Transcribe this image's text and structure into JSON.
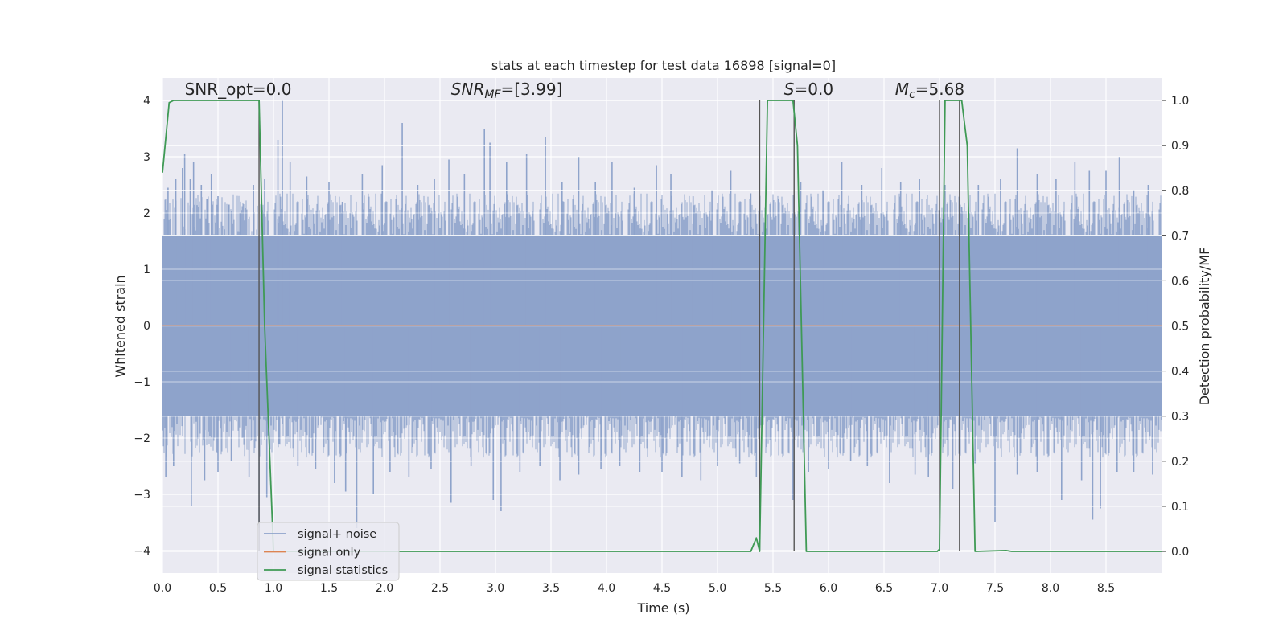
{
  "chart_data": {
    "type": "line",
    "title": "stats at each timestep for test data 16898 [signal=0]",
    "xlabel": "Time (s)",
    "ylabel_left": "Whitened strain",
    "ylabel_right": "Detection probability/MF",
    "xlim": [
      0.0,
      9.0
    ],
    "ylim_left": [
      -4.4,
      4.4
    ],
    "ylim_right": [
      -0.05,
      1.05
    ],
    "grid": true,
    "x_ticks": [
      "0.0",
      "0.5",
      "1.0",
      "1.5",
      "2.0",
      "2.5",
      "3.0",
      "3.5",
      "4.0",
      "4.5",
      "5.0",
      "5.5",
      "6.0",
      "6.5",
      "7.0",
      "7.5",
      "8.0",
      "8.5"
    ],
    "x_tick_values": [
      0.0,
      0.5,
      1.0,
      1.5,
      2.0,
      2.5,
      3.0,
      3.5,
      4.0,
      4.5,
      5.0,
      5.5,
      6.0,
      6.5,
      7.0,
      7.5,
      8.0,
      8.5
    ],
    "y_left_ticks": [
      "4",
      "3",
      "2",
      "1",
      "0",
      "−1",
      "−2",
      "−3",
      "−4"
    ],
    "y_left_tick_values": [
      4,
      3,
      2,
      1,
      0,
      -1,
      -2,
      -3,
      -4
    ],
    "y_right_ticks": [
      "1.0",
      "0.9",
      "0.8",
      "0.7",
      "0.6",
      "0.5",
      "0.4",
      "0.3",
      "0.2",
      "0.1",
      "0.0"
    ],
    "y_right_tick_values": [
      1.0,
      0.9,
      0.8,
      0.7,
      0.6,
      0.5,
      0.4,
      0.3,
      0.2,
      0.1,
      0.0
    ],
    "annotations": [
      {
        "text": "SNR_opt=0.0",
        "x": 0.2,
        "y": 4.1,
        "italic": false
      },
      {
        "text_parts": [
          [
            "SNR",
            "i"
          ],
          [
            "MF",
            "sub-i"
          ],
          [
            "=[3.99]",
            "n"
          ]
        ],
        "x": 2.6,
        "y": 4.1
      },
      {
        "text_parts": [
          [
            "S",
            "i"
          ],
          [
            "=0.0",
            "n"
          ]
        ],
        "x": 5.6,
        "y": 4.1
      },
      {
        "text_parts": [
          [
            "M",
            "i"
          ],
          [
            "c",
            "sub-i"
          ],
          [
            "=5.68",
            "n"
          ]
        ],
        "x": 6.6,
        "y": 4.1
      }
    ],
    "legend": {
      "placement": "lower-left",
      "entries": [
        {
          "label": "signal+ noise",
          "color": "#8ea3cb"
        },
        {
          "label": "signal only",
          "color": "#dd8452"
        },
        {
          "label": "signal statistics",
          "color": "#3f9a55"
        }
      ]
    },
    "vertical_lines_x": [
      0.87,
      5.38,
      5.69,
      7.0,
      7.18
    ],
    "vertical_lines_range": [
      -4.0,
      4.0
    ],
    "series": [
      {
        "name": "signal+ noise",
        "axis": "left",
        "color": "#8ea3cb",
        "render": "dense-noise",
        "core_band": [
          -1.6,
          1.6
        ],
        "x_range": [
          0.0,
          9.0
        ],
        "spikes": [
          {
            "x": 0.05,
            "y": 2.45
          },
          {
            "x": 0.12,
            "y": 2.6
          },
          {
            "x": 0.18,
            "y": 2.8
          },
          {
            "x": 0.2,
            "y": 3.05
          },
          {
            "x": 0.25,
            "y": 2.6
          },
          {
            "x": 0.28,
            "y": 2.9
          },
          {
            "x": 0.35,
            "y": 2.5
          },
          {
            "x": 0.4,
            "y": 2.25
          },
          {
            "x": 0.44,
            "y": 2.7
          },
          {
            "x": 0.5,
            "y": 2.3
          },
          {
            "x": 0.6,
            "y": 2.15
          },
          {
            "x": 0.7,
            "y": 2.0
          },
          {
            "x": 0.82,
            "y": 2.5
          },
          {
            "x": 0.92,
            "y": 2.6
          },
          {
            "x": 1.04,
            "y": 3.3
          },
          {
            "x": 1.08,
            "y": 4.0
          },
          {
            "x": 1.15,
            "y": 2.9
          },
          {
            "x": 1.3,
            "y": 2.65
          },
          {
            "x": 1.5,
            "y": 2.55
          },
          {
            "x": 1.62,
            "y": 2.2
          },
          {
            "x": 1.8,
            "y": 2.7
          },
          {
            "x": 1.98,
            "y": 2.85
          },
          {
            "x": 2.16,
            "y": 3.6
          },
          {
            "x": 2.3,
            "y": 2.5
          },
          {
            "x": 2.45,
            "y": 2.6
          },
          {
            "x": 2.58,
            "y": 2.95
          },
          {
            "x": 2.72,
            "y": 2.7
          },
          {
            "x": 2.9,
            "y": 3.5
          },
          {
            "x": 2.95,
            "y": 3.25
          },
          {
            "x": 3.1,
            "y": 2.9
          },
          {
            "x": 3.28,
            "y": 3.05
          },
          {
            "x": 3.45,
            "y": 3.35
          },
          {
            "x": 3.6,
            "y": 2.55
          },
          {
            "x": 3.75,
            "y": 3.0
          },
          {
            "x": 3.9,
            "y": 2.55
          },
          {
            "x": 4.05,
            "y": 2.9
          },
          {
            "x": 4.25,
            "y": 2.45
          },
          {
            "x": 4.45,
            "y": 2.85
          },
          {
            "x": 4.58,
            "y": 2.7
          },
          {
            "x": 4.78,
            "y": 2.3
          },
          {
            "x": 4.95,
            "y": 2.4
          },
          {
            "x": 5.12,
            "y": 2.75
          },
          {
            "x": 5.3,
            "y": 2.35
          },
          {
            "x": 5.55,
            "y": 2.25
          },
          {
            "x": 5.75,
            "y": 2.55
          },
          {
            "x": 5.95,
            "y": 2.4
          },
          {
            "x": 6.12,
            "y": 2.9
          },
          {
            "x": 6.3,
            "y": 2.5
          },
          {
            "x": 6.48,
            "y": 2.8
          },
          {
            "x": 6.65,
            "y": 2.55
          },
          {
            "x": 6.82,
            "y": 2.6
          },
          {
            "x": 7.05,
            "y": 2.5
          },
          {
            "x": 7.2,
            "y": 2.1
          },
          {
            "x": 7.35,
            "y": 2.5
          },
          {
            "x": 7.55,
            "y": 2.6
          },
          {
            "x": 7.7,
            "y": 3.15
          },
          {
            "x": 7.88,
            "y": 2.7
          },
          {
            "x": 8.05,
            "y": 2.6
          },
          {
            "x": 8.22,
            "y": 2.9
          },
          {
            "x": 8.35,
            "y": 2.75
          },
          {
            "x": 8.5,
            "y": 2.75
          },
          {
            "x": 8.62,
            "y": 3.0
          },
          {
            "x": 8.75,
            "y": 2.4
          },
          {
            "x": 8.88,
            "y": 2.5
          },
          {
            "x": 0.03,
            "y": -2.7
          },
          {
            "x": 0.1,
            "y": -2.5
          },
          {
            "x": 0.26,
            "y": -3.2
          },
          {
            "x": 0.38,
            "y": -2.75
          },
          {
            "x": 0.5,
            "y": -2.6
          },
          {
            "x": 0.62,
            "y": -2.4
          },
          {
            "x": 0.78,
            "y": -2.7
          },
          {
            "x": 0.87,
            "y": -3.6
          },
          {
            "x": 0.94,
            "y": -3.05
          },
          {
            "x": 1.05,
            "y": -2.1
          },
          {
            "x": 1.22,
            "y": -2.5
          },
          {
            "x": 1.38,
            "y": -2.55
          },
          {
            "x": 1.55,
            "y": -2.8
          },
          {
            "x": 1.65,
            "y": -2.95
          },
          {
            "x": 1.75,
            "y": -3.6
          },
          {
            "x": 1.9,
            "y": -3.0
          },
          {
            "x": 2.05,
            "y": -2.6
          },
          {
            "x": 2.22,
            "y": -2.7
          },
          {
            "x": 2.42,
            "y": -2.55
          },
          {
            "x": 2.6,
            "y": -3.15
          },
          {
            "x": 2.78,
            "y": -2.5
          },
          {
            "x": 2.98,
            "y": -3.1
          },
          {
            "x": 3.05,
            "y": -3.3
          },
          {
            "x": 3.22,
            "y": -2.6
          },
          {
            "x": 3.4,
            "y": -2.5
          },
          {
            "x": 3.58,
            "y": -2.75
          },
          {
            "x": 3.75,
            "y": -2.65
          },
          {
            "x": 3.95,
            "y": -2.55
          },
          {
            "x": 4.12,
            "y": -2.5
          },
          {
            "x": 4.3,
            "y": -2.6
          },
          {
            "x": 4.5,
            "y": -2.6
          },
          {
            "x": 4.68,
            "y": -2.7
          },
          {
            "x": 4.85,
            "y": -2.75
          },
          {
            "x": 5.0,
            "y": -2.5
          },
          {
            "x": 5.2,
            "y": -2.45
          },
          {
            "x": 5.35,
            "y": -2.7
          },
          {
            "x": 5.68,
            "y": -3.1
          },
          {
            "x": 5.82,
            "y": -2.6
          },
          {
            "x": 6.0,
            "y": -2.55
          },
          {
            "x": 6.2,
            "y": -2.4
          },
          {
            "x": 6.35,
            "y": -2.5
          },
          {
            "x": 6.55,
            "y": -2.8
          },
          {
            "x": 6.78,
            "y": -2.65
          },
          {
            "x": 6.9,
            "y": -2.7
          },
          {
            "x": 7.12,
            "y": -2.9
          },
          {
            "x": 7.32,
            "y": -2.45
          },
          {
            "x": 7.5,
            "y": -3.5
          },
          {
            "x": 7.7,
            "y": -2.65
          },
          {
            "x": 7.88,
            "y": -2.6
          },
          {
            "x": 8.1,
            "y": -3.1
          },
          {
            "x": 8.28,
            "y": -2.75
          },
          {
            "x": 8.38,
            "y": -3.45
          },
          {
            "x": 8.45,
            "y": -3.25
          },
          {
            "x": 8.6,
            "y": -2.6
          },
          {
            "x": 8.75,
            "y": -2.6
          },
          {
            "x": 8.92,
            "y": -2.65
          }
        ]
      },
      {
        "name": "signal only",
        "axis": "left",
        "color": "#dd8452",
        "x": [
          0.0,
          9.0
        ],
        "y": [
          0.0,
          0.0
        ]
      },
      {
        "name": "signal statistics",
        "axis": "right",
        "color": "#3f9a55",
        "x": [
          0.0,
          0.06,
          0.1,
          0.2,
          0.87,
          0.92,
          1.0,
          1.01,
          1.2,
          5.3,
          5.35,
          5.38,
          5.45,
          5.68,
          5.72,
          5.8,
          5.85,
          6.98,
          7.0,
          7.05,
          7.15,
          7.2,
          7.25,
          7.32,
          7.6,
          7.65,
          8.0,
          9.0
        ],
        "y": [
          0.84,
          0.995,
          1.0,
          1.0,
          1.0,
          0.5,
          0.0,
          0.0,
          0.0,
          0.0,
          0.03,
          0.0,
          1.0,
          1.0,
          0.9,
          0.0,
          0.0,
          0.0,
          0.005,
          1.0,
          1.0,
          1.0,
          0.9,
          0.0,
          0.002,
          0.0,
          0.0,
          0.0
        ]
      }
    ]
  }
}
